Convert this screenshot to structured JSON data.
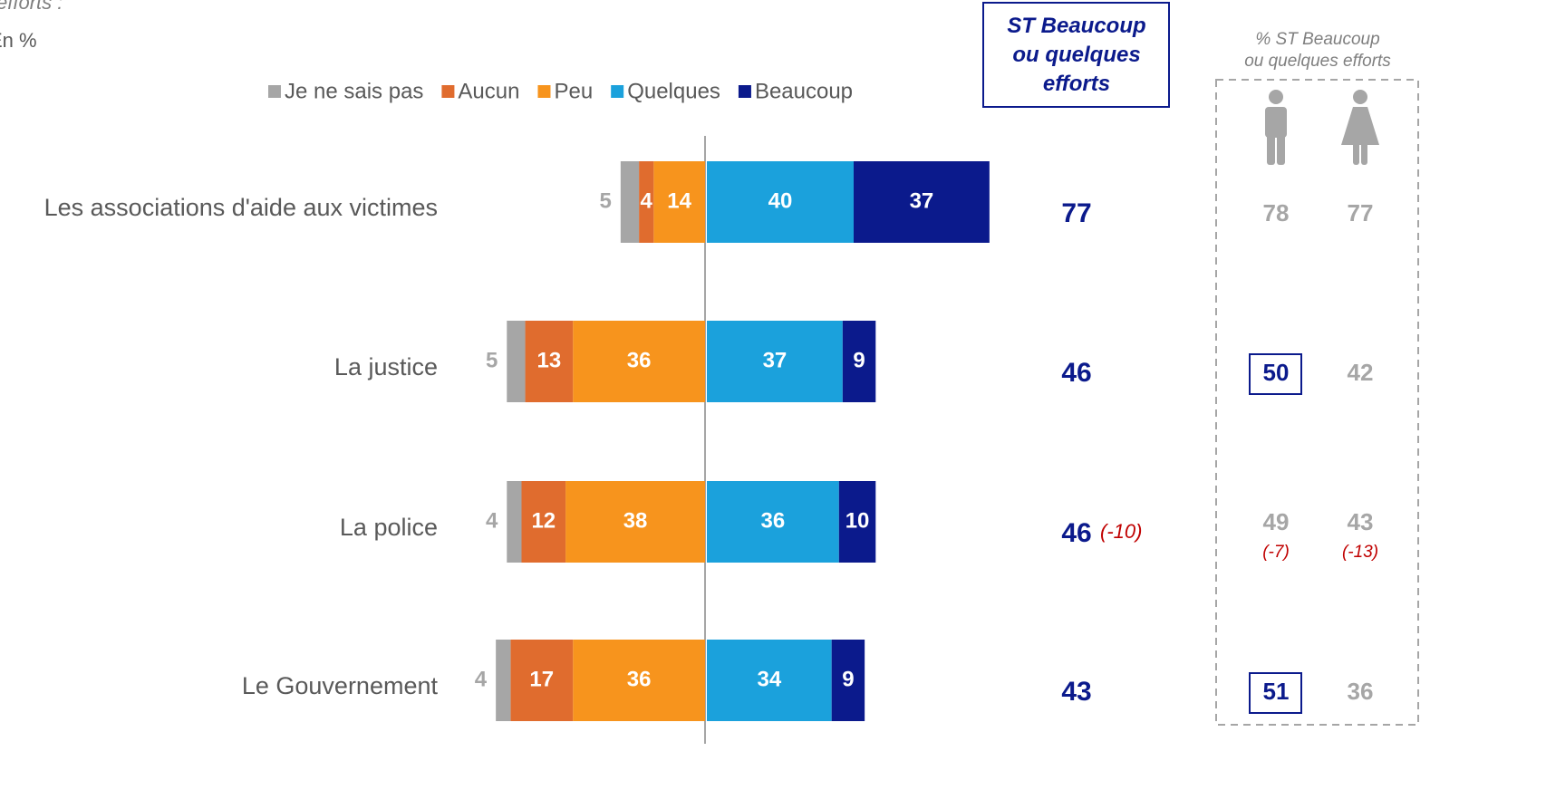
{
  "header": {
    "question_tail": "efforts :",
    "unit": "En %"
  },
  "chart_data": {
    "type": "diverging_bar",
    "categories": [
      "Les associations d'aide aux victimes",
      "La justice",
      "La police",
      "Le Gouvernement"
    ],
    "series": [
      {
        "name": "Je ne sais pas",
        "color": "#a6a6a6",
        "side": "left",
        "values": [
          5,
          5,
          4,
          4
        ]
      },
      {
        "name": "Aucun",
        "color": "#e06c2e",
        "side": "left",
        "values": [
          4,
          13,
          12,
          17
        ]
      },
      {
        "name": "Peu",
        "color": "#f7941d",
        "side": "left",
        "values": [
          14,
          36,
          38,
          36
        ]
      },
      {
        "name": "Quelques",
        "color": "#1ba1dc",
        "side": "right",
        "values": [
          40,
          37,
          36,
          34
        ]
      },
      {
        "name": "Beaucoup",
        "color": "#0b1a8c",
        "side": "right",
        "values": [
          37,
          9,
          10,
          9
        ]
      }
    ],
    "total_title": "ST Beaucoup ou quelques efforts",
    "totals": [
      77,
      46,
      46,
      43
    ],
    "total_changes": [
      null,
      null,
      -10,
      null
    ],
    "total_change_labels": [
      null,
      null,
      "(-10)",
      null
    ],
    "gender_title": "% ST Beaucoup ou quelques efforts",
    "men": [
      78,
      50,
      49,
      51
    ],
    "men_highlight": [
      false,
      true,
      false,
      true
    ],
    "men_changes": [
      null,
      null,
      -7,
      null
    ],
    "men_change_labels": [
      null,
      null,
      "(-7)",
      null
    ],
    "women": [
      77,
      42,
      43,
      36
    ],
    "women_changes": [
      null,
      null,
      -13,
      null
    ],
    "women_change_labels": [
      null,
      null,
      "(-13)",
      null
    ]
  }
}
